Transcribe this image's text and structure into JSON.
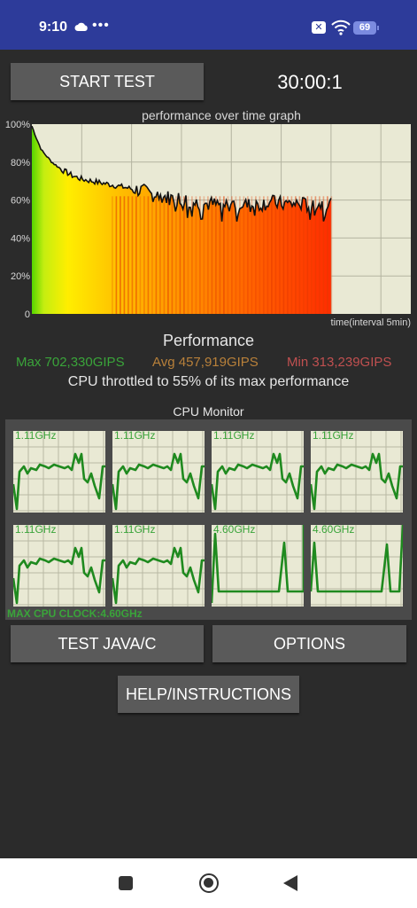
{
  "status_bar": {
    "time": "9:10",
    "dots": "•••",
    "sim_icon": "✕",
    "battery": "69"
  },
  "controls": {
    "start_label": "START TEST",
    "timer": "30:00:1",
    "java_label": "TEST JAVA/C",
    "options_label": "OPTIONS",
    "help_label": "HELP/INSTRUCTIONS"
  },
  "graph": {
    "title": "performance over time graph",
    "time_label": "time(interval 5min)",
    "y_ticks": [
      "100%",
      "80%",
      "60%",
      "40%",
      "20%",
      "0"
    ]
  },
  "performance": {
    "title": "Performance",
    "max": "Max 702,330GIPS",
    "avg": "Avg 457,919GIPS",
    "min": "Min 313,239GIPS",
    "throttle_text": "CPU throttled to 55% of its max performance"
  },
  "cpu_monitor": {
    "title": "CPU Monitor",
    "max_clock": "MAX CPU CLOCK:4.60GHz",
    "cores": [
      {
        "freq": "1.11GHz",
        "pattern": "wave"
      },
      {
        "freq": "1.11GHz",
        "pattern": "wave"
      },
      {
        "freq": "1.11GHz",
        "pattern": "wave"
      },
      {
        "freq": "1.11GHz",
        "pattern": "wave"
      },
      {
        "freq": "1.11GHz",
        "pattern": "wave"
      },
      {
        "freq": "1.11GHz",
        "pattern": "wave"
      },
      {
        "freq": "4.60GHz",
        "pattern": "spike"
      },
      {
        "freq": "4.60GHz",
        "pattern": "spike"
      }
    ]
  },
  "colors": {
    "graph_bg": "#e9e9d4",
    "green": "#3aa43a",
    "grid": "#b4b4a0"
  },
  "chart_data": {
    "type": "area",
    "title": "performance over time graph",
    "xlabel": "time(interval 5min)",
    "ylabel": "",
    "ylim": [
      0,
      100
    ],
    "y_ticks": [
      0,
      20,
      40,
      60,
      80,
      100
    ],
    "x_range_min": [
      0,
      30
    ],
    "series": [
      {
        "x": [
          0,
          0.5,
          1,
          2,
          3,
          4,
          5,
          6,
          7,
          8,
          9,
          10,
          11,
          12,
          13,
          14,
          15,
          16,
          17,
          18,
          19,
          20,
          21,
          22,
          23,
          24,
          25,
          26,
          27,
          28,
          29,
          30
        ],
        "values": [
          99,
          92,
          86,
          80,
          76,
          73,
          71,
          70,
          69,
          68,
          67,
          66,
          65,
          63,
          62,
          61,
          61,
          59,
          58,
          58,
          57,
          58,
          58,
          57,
          58,
          59,
          58,
          58,
          58,
          57,
          58,
          58
        ]
      }
    ]
  }
}
